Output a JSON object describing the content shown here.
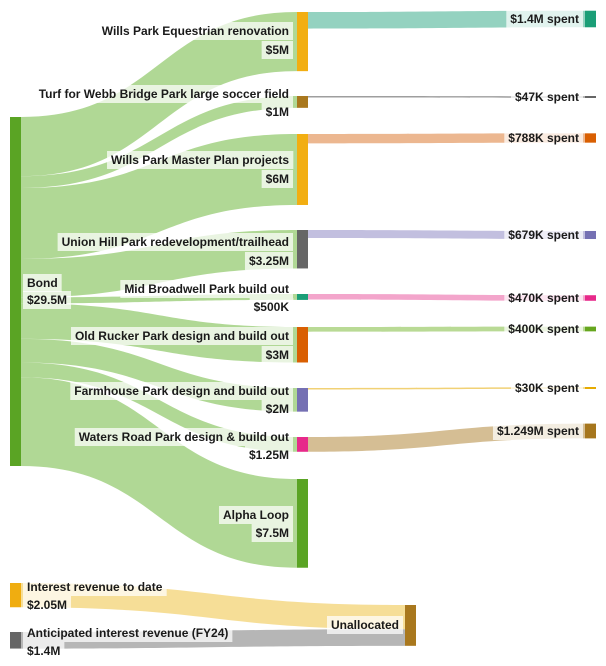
{
  "chart_data": {
    "type": "sankey",
    "unit": "USD millions",
    "colors": {
      "bond": "#5aa424",
      "link_green": "#a7d489",
      "allocated_bar": "#f2ae12",
      "interest": "#f0ad10",
      "anticipated": "#666666",
      "unallocated": "#a9781e"
    },
    "source": {
      "name": "Bond",
      "amount_label": "$29.5M",
      "value": 29.5
    },
    "projects": [
      {
        "name": "Wills Park Equestrian renovation",
        "amount_label": "$5M",
        "value": 5,
        "node_color": "#f2ae12",
        "spent_label": "$1.4M spent",
        "spent": 1.4,
        "spent_color": "#1b9e77",
        "spent_link": "#8ed0bd"
      },
      {
        "name": "Turf for Webb Bridge Park large soccer field",
        "amount_label": "$1M",
        "value": 1,
        "node_color": "#a9781e",
        "spent_label": "$47K spent",
        "spent": 0.047,
        "spent_color": "#666666",
        "spent_link": "#999999"
      },
      {
        "name": "Wills Park Master Plan projects",
        "amount_label": "$6M",
        "value": 6,
        "node_color": "#f2ae12",
        "spent_label": "$788K spent",
        "spent": 0.788,
        "spent_color": "#d95f02",
        "spent_link": "#ebb38a"
      },
      {
        "name": "Union Hill Park redevelopment/trailhead",
        "amount_label": "$3.25M",
        "value": 3.25,
        "node_color": "#666666",
        "spent_label": "$679K spent",
        "spent": 0.679,
        "spent_color": "#7570b3",
        "spent_link": "#bfbcdd"
      },
      {
        "name": "Mid Broadwell Park build out",
        "amount_label": "$500K",
        "value": 0.5,
        "node_color": "#1b9e77",
        "spent_label": "$470K spent",
        "spent": 0.47,
        "spent_color": "#e7298a",
        "spent_link": "#f2a0c8"
      },
      {
        "name": "Old Rucker Park design and build out",
        "amount_label": "$3M",
        "value": 3,
        "node_color": "#d95f02",
        "spent_label": "$400K spent",
        "spent": 0.4,
        "spent_color": "#66a61e",
        "spent_link": "#b5d88f"
      },
      {
        "name": "Farmhouse Park design and build out",
        "amount_label": "$2M",
        "value": 2,
        "node_color": "#7570b3",
        "spent_label": "$30K spent",
        "spent": 0.03,
        "spent_color": "#e6ab02",
        "spent_link": "#f0cf6e"
      },
      {
        "name": "Waters Road Park design & build out",
        "amount_label": "$1.25M",
        "value": 1.25,
        "node_color": "#e7298a",
        "spent_label": "$1.249M spent",
        "spent": 1.249,
        "spent_color": "#a6761d",
        "spent_link": "#d3bb8e"
      },
      {
        "name": "Alpha Loop",
        "amount_label": "$7.5M",
        "value": 7.5,
        "node_color": "#5aa424",
        "spent_label": "",
        "spent": 0,
        "spent_color": "",
        "spent_link": ""
      }
    ],
    "interest_sources": [
      {
        "name": "Interest revenue to date",
        "amount_label": "$2.05M",
        "value": 2.05,
        "color": "#f0ad10",
        "link": "#f6dc91"
      },
      {
        "name": "Anticipated interest revenue (FY24)",
        "amount_label": "$1.4M",
        "value": 1.4,
        "color": "#666666",
        "link": "#b2b2b2"
      }
    ],
    "sink": {
      "name": "Unallocated",
      "value": 3.45
    }
  }
}
